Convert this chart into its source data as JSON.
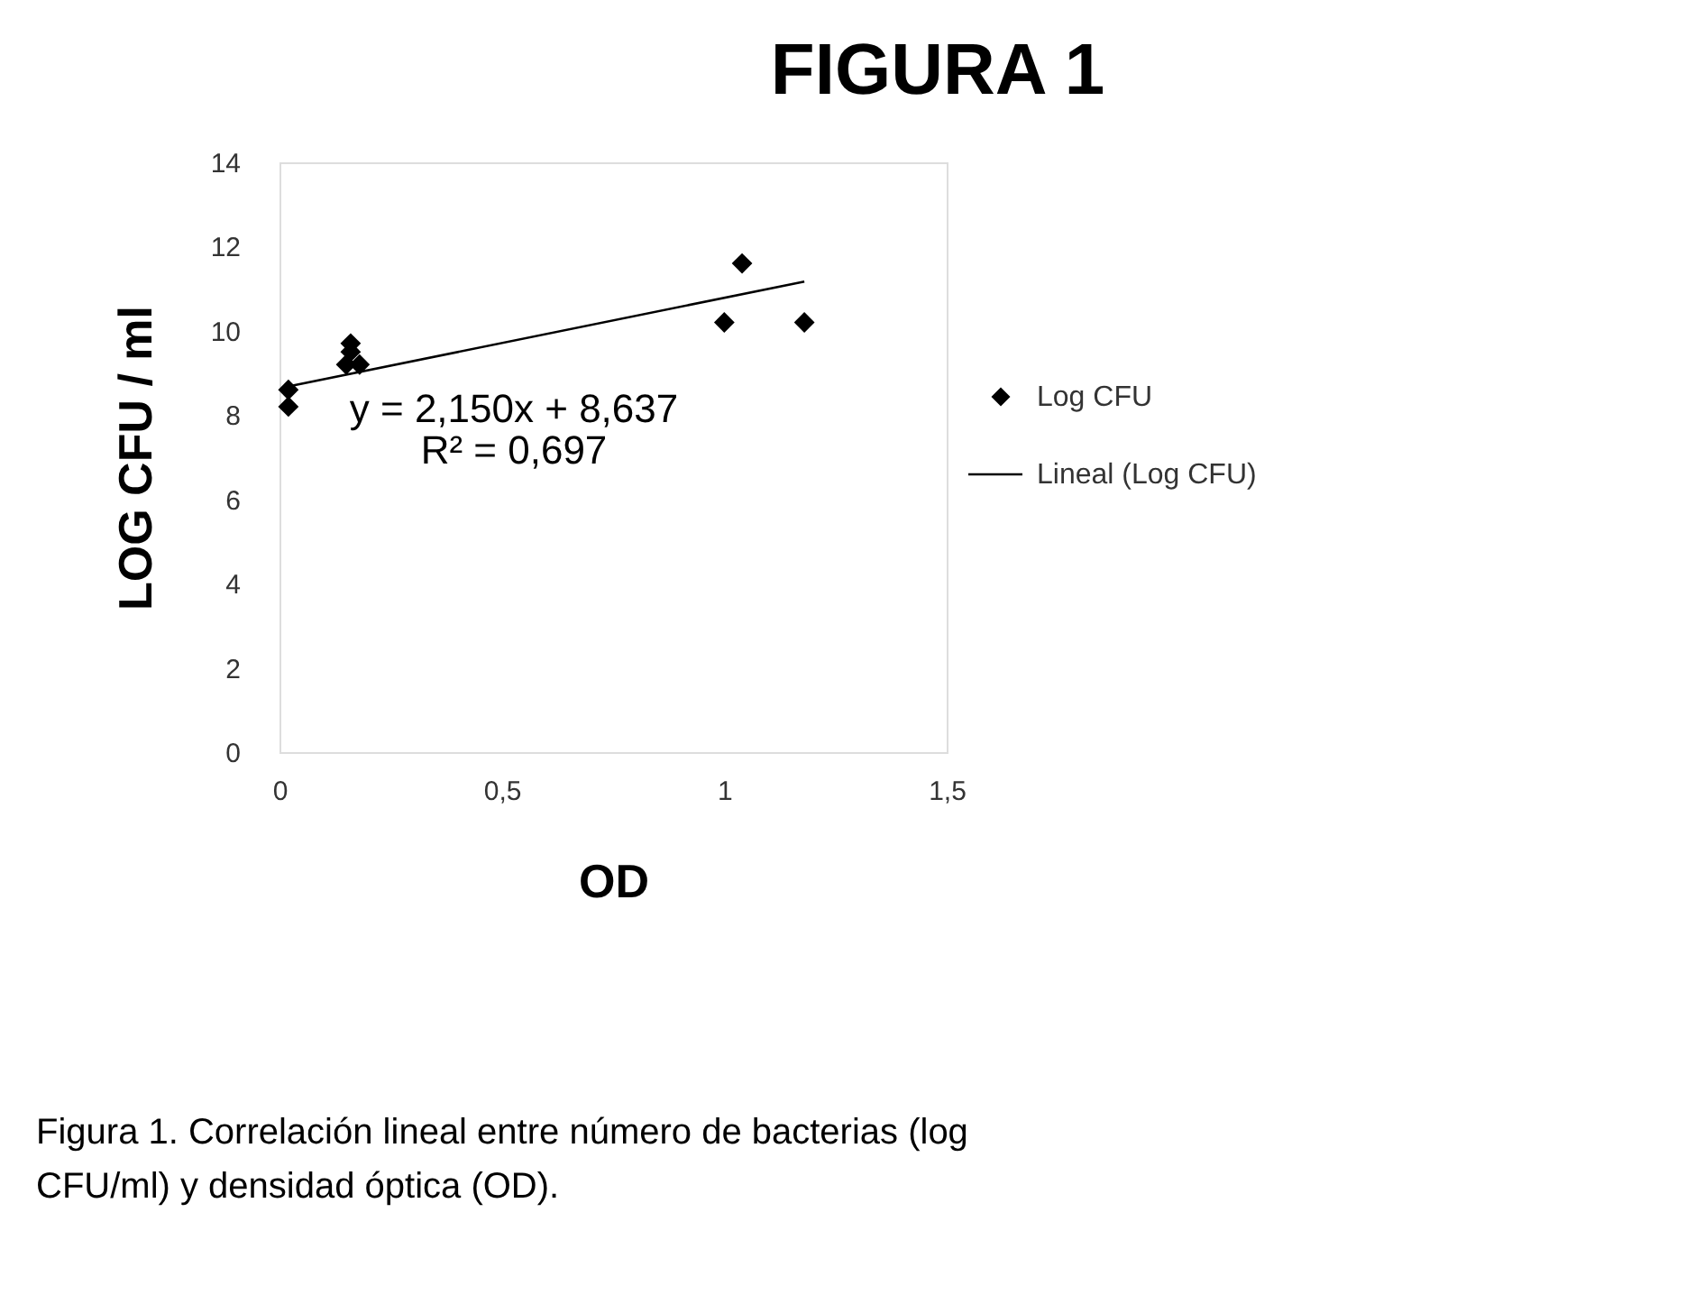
{
  "chart_data": {
    "type": "scatter",
    "title": "FIGURA 1",
    "xlabel": "OD",
    "ylabel": "LOG CFU / ml",
    "series": [
      {
        "name": "Log CFU",
        "type": "scatter",
        "color": "#000000",
        "marker": "diamond",
        "x": [
          0.02,
          0.02,
          0.16,
          0.16,
          0.15,
          0.18,
          1.0,
          1.04,
          1.18
        ],
        "values": [
          8.6,
          8.2,
          9.7,
          9.5,
          9.2,
          9.2,
          10.2,
          11.6,
          10.2
        ]
      },
      {
        "name": "Lineal (Log CFU)",
        "type": "line",
        "color": "#000000",
        "line_style": "solid",
        "marker": "none",
        "x": [
          0.02,
          1.18
        ],
        "values": [
          8.68,
          11.17
        ]
      }
    ],
    "xlim": [
      0,
      1.5
    ],
    "xticks": [
      0,
      {
        "value": 0.5,
        "label": "0,5"
      },
      1,
      {
        "value": 1.5,
        "label": "1,5"
      }
    ],
    "ylim": [
      0,
      14
    ],
    "yticks": [
      0,
      2,
      4,
      6,
      8,
      10,
      12,
      14
    ],
    "grid": false,
    "legend": "right",
    "annotations": [
      "y = 2,150x + 8,637",
      "R² = 0,697",
      "Figura 1. Correlación lineal entre número de bacterias (log CFU/ml) y densidad óptica (OD)."
    ]
  }
}
